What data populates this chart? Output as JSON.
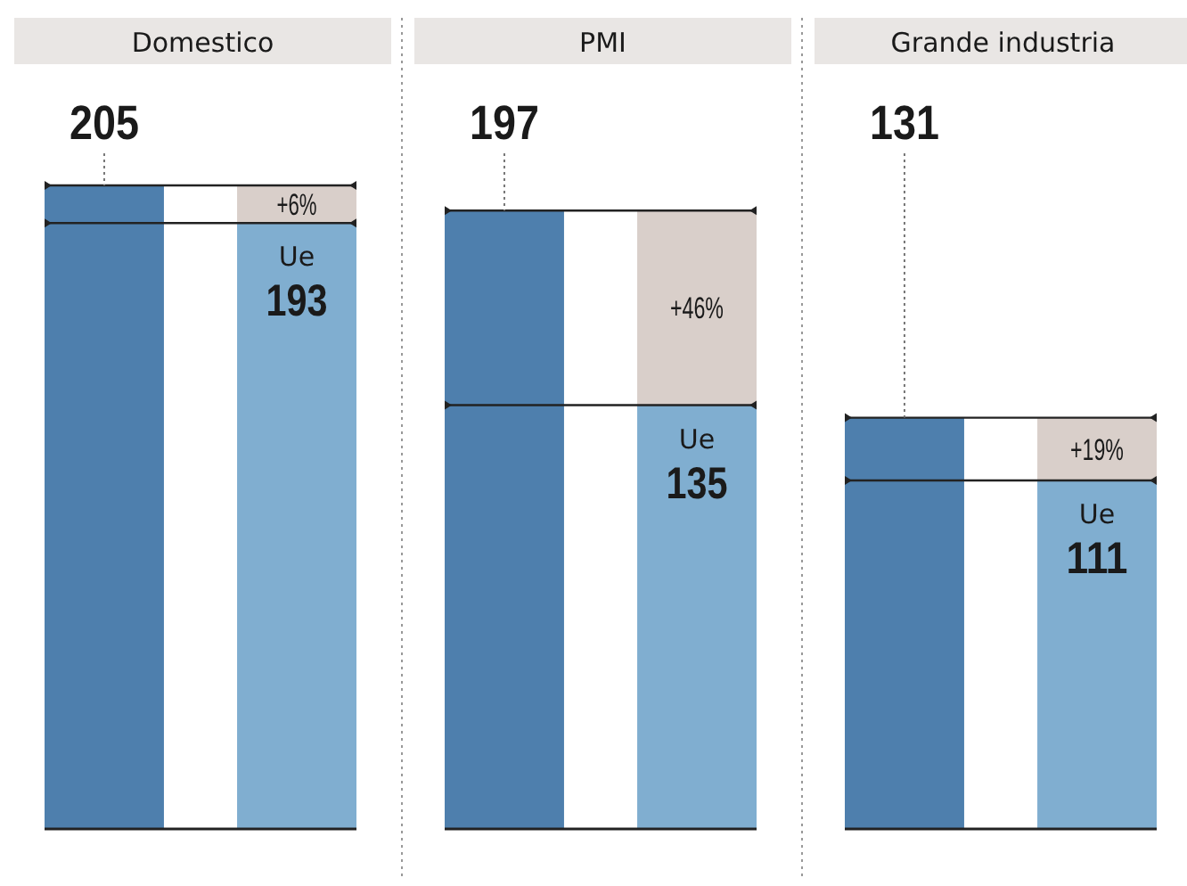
{
  "chart_data": [
    {
      "type": "bar",
      "title": "Domestico",
      "categories": [
        null,
        null
      ],
      "stacked": true,
      "annotations": [
        "Ue",
        "+6%"
      ],
      "series": [
        {
          "values": [
            205,
            193
          ],
          "colors": [
            "#4e7fad",
            "#80aed0"
          ],
          "value_labels": [
            "205",
            "193"
          ]
        },
        {
          "values": [
            null,
            12
          ],
          "color": "#d9cfca"
        }
      ],
      "ref_lines": [
        {
          "axis": "y",
          "value": 205,
          "color": "#222222"
        },
        {
          "axis": "y",
          "value": 193,
          "color": "#222222"
        }
      ]
    },
    {
      "type": "bar",
      "title": "PMI",
      "categories": [
        null,
        null
      ],
      "stacked": true,
      "annotations": [
        "Ue",
        "+46%"
      ],
      "series": [
        {
          "values": [
            197,
            135
          ],
          "colors": [
            "#4e7fad",
            "#80aed0"
          ],
          "value_labels": [
            "197",
            "135"
          ]
        },
        {
          "values": [
            null,
            62
          ],
          "color": "#d9cfca"
        }
      ],
      "ref_lines": [
        {
          "axis": "y",
          "value": 197,
          "color": "#222222"
        },
        {
          "axis": "y",
          "value": 135,
          "color": "#222222"
        }
      ]
    },
    {
      "type": "bar",
      "title": "Grande industria",
      "categories": [
        null,
        null
      ],
      "stacked": true,
      "annotations": [
        "Ue",
        "+19%"
      ],
      "series": [
        {
          "values": [
            131,
            111
          ],
          "colors": [
            "#4e7fad",
            "#80aed0"
          ],
          "value_labels": [
            "131",
            "111"
          ]
        },
        {
          "values": [
            null,
            20
          ],
          "color": "#d9cfca"
        }
      ],
      "ref_lines": [
        {
          "axis": "y",
          "value": 131,
          "color": "#222222"
        },
        {
          "axis": "y",
          "value": 111,
          "color": "#222222"
        }
      ]
    }
  ]
}
